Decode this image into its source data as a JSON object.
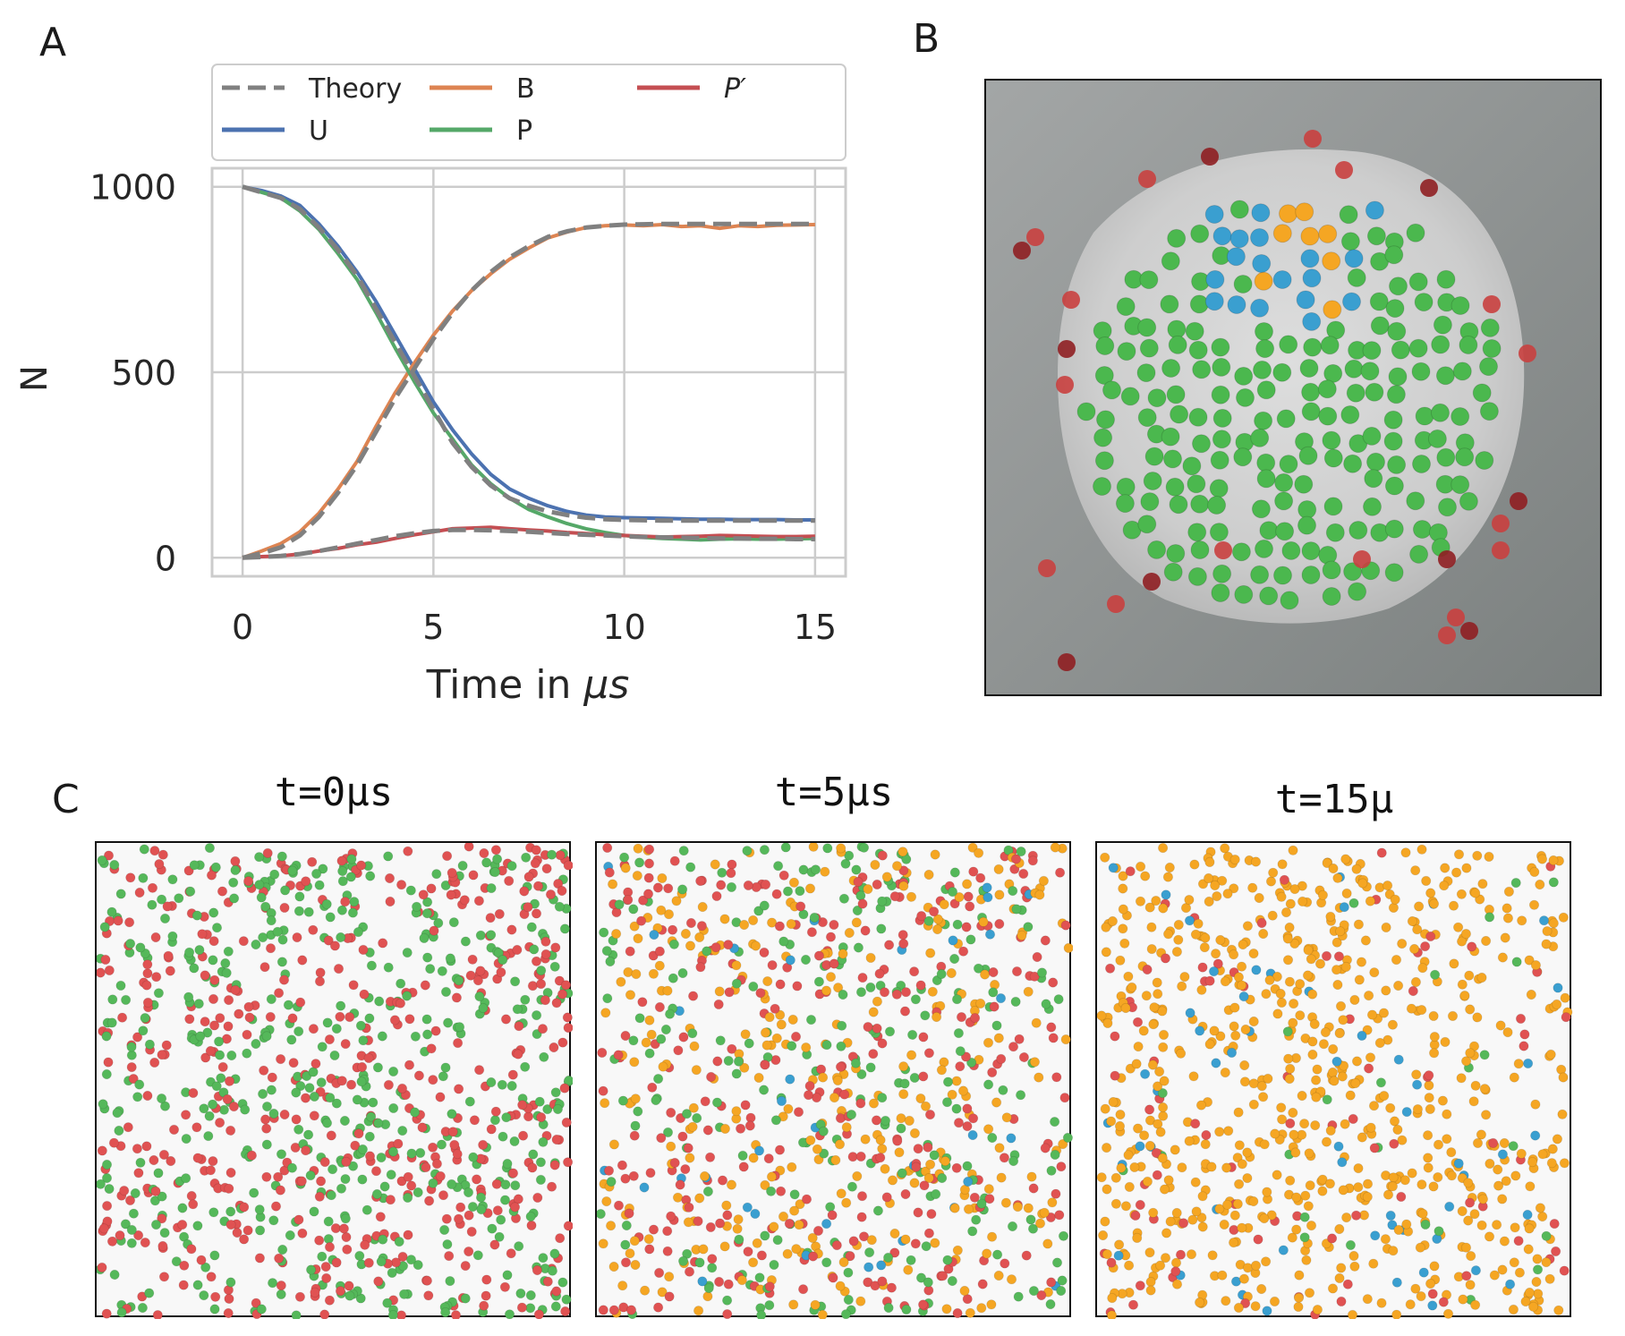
{
  "panel_labels": {
    "a": "A",
    "b": "B",
    "c": "C"
  },
  "chart_data": {
    "type": "line",
    "xlabel": "Time in ",
    "xlabel_math": "μs",
    "ylabel": "N",
    "xlim": [
      -0.8,
      15.8
    ],
    "ylim": [
      -50,
      1050
    ],
    "xticks": [
      0,
      5,
      10,
      15
    ],
    "yticks": [
      0,
      500,
      1000
    ],
    "xtick_labels": [
      "0",
      "5",
      "10",
      "15"
    ],
    "ytick_labels": [
      "0",
      "500",
      "1000"
    ],
    "grid": true,
    "legend_position": "top, above the axes",
    "x": [
      0,
      0.5,
      1,
      1.5,
      2,
      2.5,
      3,
      3.5,
      4,
      4.5,
      5,
      5.5,
      6,
      6.5,
      7,
      7.5,
      8,
      8.5,
      9,
      9.5,
      10,
      10.5,
      11,
      11.5,
      12,
      12.5,
      13,
      13.5,
      14,
      14.5,
      15
    ],
    "series": [
      {
        "name": "Theory",
        "color": "#808080",
        "dashed": true,
        "values": [
          1000,
          985,
          970,
          940,
          890,
          830,
          760,
          670,
          580,
          490,
          400,
          310,
          245,
          195,
          160,
          140,
          125,
          115,
          108,
          104,
          102,
          101,
          100,
          100,
          100,
          100,
          100,
          100,
          100,
          100,
          100
        ]
      },
      {
        "name": "Theory",
        "color": "#808080",
        "dashed": true,
        "hide_legend": true,
        "values": [
          0,
          12,
          28,
          60,
          110,
          175,
          250,
          340,
          430,
          510,
          590,
          660,
          720,
          770,
          810,
          840,
          865,
          880,
          890,
          895,
          898,
          899,
          900,
          900,
          900,
          900,
          900,
          900,
          900,
          900,
          900
        ]
      },
      {
        "name": "Theory",
        "color": "#808080",
        "dashed": true,
        "hide_legend": true,
        "values": [
          0,
          2,
          5,
          10,
          18,
          28,
          38,
          48,
          58,
          66,
          72,
          75,
          75,
          74,
          72,
          70,
          67,
          64,
          62,
          60,
          58,
          56,
          55,
          54,
          53,
          52,
          52,
          51,
          51,
          50,
          50
        ]
      },
      {
        "name": "U",
        "color": "#4c72b0",
        "values": [
          1000,
          990,
          975,
          950,
          900,
          840,
          770,
          690,
          600,
          510,
          420,
          345,
          280,
          225,
          185,
          160,
          140,
          125,
          115,
          110,
          108,
          107,
          106,
          105,
          104,
          104,
          103,
          103,
          103,
          102,
          102
        ]
      },
      {
        "name": "B",
        "color": "#dd8452",
        "values": [
          0,
          18,
          38,
          70,
          120,
          185,
          260,
          355,
          445,
          525,
          600,
          665,
          720,
          765,
          805,
          835,
          862,
          878,
          890,
          895,
          897,
          895,
          898,
          893,
          895,
          888,
          895,
          893,
          896,
          897,
          898
        ]
      },
      {
        "name": "P",
        "color": "#55a868",
        "values": [
          1000,
          985,
          970,
          935,
          885,
          820,
          750,
          660,
          565,
          475,
          390,
          320,
          250,
          200,
          160,
          130,
          110,
          92,
          78,
          68,
          60,
          55,
          52,
          50,
          48,
          50,
          51,
          50,
          50,
          51,
          52
        ]
      },
      {
        "name": "P′",
        "color": "#c44e52",
        "values": [
          0,
          3,
          5,
          10,
          18,
          25,
          35,
          42,
          52,
          62,
          70,
          78,
          80,
          82,
          78,
          75,
          72,
          68,
          65,
          62,
          60,
          58,
          56,
          57,
          58,
          60,
          59,
          58,
          57,
          57,
          58
        ]
      }
    ]
  },
  "panel_c": {
    "snapshots": [
      {
        "title": "t=0μs",
        "counts": {
          "red": 520,
          "green": 520,
          "orange": 0,
          "blue": 0
        },
        "seed": 11
      },
      {
        "title": "t=5μs",
        "counts": {
          "red": 330,
          "green": 270,
          "orange": 340,
          "blue": 35
        },
        "seed": 23
      },
      {
        "title": "t=15μ",
        "counts": {
          "red": 90,
          "green": 25,
          "orange": 720,
          "blue": 55
        },
        "seed": 37
      }
    ],
    "colors": {
      "red": "#e05252",
      "green": "#55b85a",
      "orange": "#f5a623",
      "blue": "#3a9fd0"
    }
  },
  "panel_b": {
    "colors": {
      "green": "#4bb84e",
      "blue": "#3a9fd0",
      "orange": "#f5a623",
      "red": "#c9403f",
      "dark_red": "#8f1f22"
    }
  }
}
